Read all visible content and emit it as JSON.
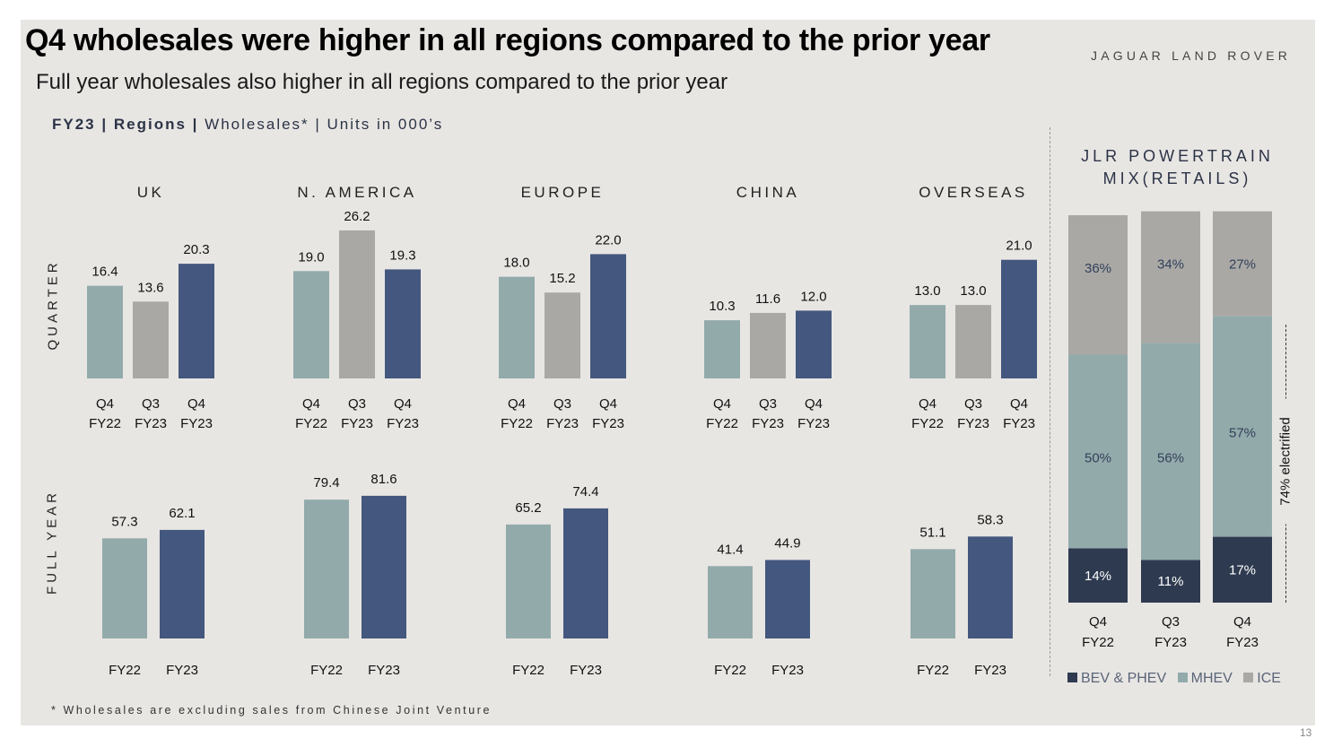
{
  "header": {
    "title": "Q4 wholesales were higher in all regions compared to the prior year",
    "subtitle": "Full year wholesales also higher in all regions compared to the prior year",
    "brand": "JAGUAR LAND ROVER"
  },
  "context": {
    "fy": "FY23",
    "regions": "Regions",
    "sep": "|",
    "rest": "Wholesales* | Units in 000’s"
  },
  "row_labels": {
    "quarter": "QUARTER",
    "full_year": "FULL YEAR"
  },
  "footnote": "* Wholesales are excluding sales from Chinese Joint Venture",
  "page_number": "13",
  "colors": {
    "prior": "#93aaab",
    "q3": "#a9a8a5",
    "current": "#44577e",
    "bev": "#2e3a4f",
    "mhev": "#93aaab",
    "ice": "#a9a8a5"
  },
  "chart_data": [
    {
      "type": "bar",
      "name": "quarter",
      "categories": [
        "Q4 FY22",
        "Q3 FY23",
        "Q4 FY23"
      ],
      "category_lines": [
        [
          "Q4",
          "FY22"
        ],
        [
          "Q3",
          "FY23"
        ],
        [
          "Q4",
          "FY23"
        ]
      ],
      "regions": [
        {
          "name": "UK",
          "values": [
            16.4,
            13.6,
            20.3
          ],
          "labels": [
            "16.4",
            "13.6",
            "20.3"
          ]
        },
        {
          "name": "N. AMERICA",
          "values": [
            19.0,
            26.2,
            19.3
          ],
          "labels": [
            "19.0",
            "26.2",
            "19.3"
          ]
        },
        {
          "name": "EUROPE",
          "values": [
            18.0,
            15.2,
            22.0
          ],
          "labels": [
            "18.0",
            "15.2",
            "22.0"
          ]
        },
        {
          "name": "CHINA",
          "values": [
            10.3,
            11.6,
            12.0
          ],
          "labels": [
            "10.3",
            "11.6",
            "12.0"
          ]
        },
        {
          "name": "OVERSEAS",
          "values": [
            13.0,
            13.0,
            21.0
          ],
          "labels": [
            "13.0",
            "13.0",
            "21.0"
          ]
        }
      ]
    },
    {
      "type": "bar",
      "name": "full_year",
      "categories": [
        "FY22",
        "FY23"
      ],
      "regions": [
        {
          "name": "UK",
          "values": [
            57.3,
            62.1
          ],
          "labels": [
            "57.3",
            "62.1"
          ]
        },
        {
          "name": "N. AMERICA",
          "values": [
            79.4,
            81.6
          ],
          "labels": [
            "79.4",
            "81.6"
          ]
        },
        {
          "name": "EUROPE",
          "values": [
            65.2,
            74.4
          ],
          "labels": [
            "65.2",
            "74.4"
          ]
        },
        {
          "name": "CHINA",
          "values": [
            41.4,
            44.9
          ],
          "labels": [
            "41.4",
            "44.9"
          ]
        },
        {
          "name": "OVERSEAS",
          "values": [
            51.1,
            58.3
          ],
          "labels": [
            "51.1",
            "58.3"
          ]
        }
      ]
    },
    {
      "type": "bar",
      "stacked": true,
      "name": "powertrain_mix",
      "title": "JLR POWERTRAIN MIX(RETAILS)",
      "categories": [
        "Q4 FY22",
        "Q3 FY23",
        "Q4 FY23"
      ],
      "category_lines": [
        [
          "Q4",
          "FY22"
        ],
        [
          "Q3",
          "FY23"
        ],
        [
          "Q4",
          "FY23"
        ]
      ],
      "series": [
        {
          "name": "BEV & PHEV",
          "values": [
            14,
            11,
            17
          ],
          "labels": [
            "14%",
            "11%",
            "17%"
          ]
        },
        {
          "name": "MHEV",
          "values": [
            50,
            56,
            57
          ],
          "labels": [
            "50%",
            "56%",
            "57%"
          ]
        },
        {
          "name": "ICE",
          "values": [
            36,
            34,
            27
          ],
          "labels": [
            "36%",
            "34%",
            "27%"
          ]
        }
      ],
      "annotation": "74% electrified"
    }
  ]
}
